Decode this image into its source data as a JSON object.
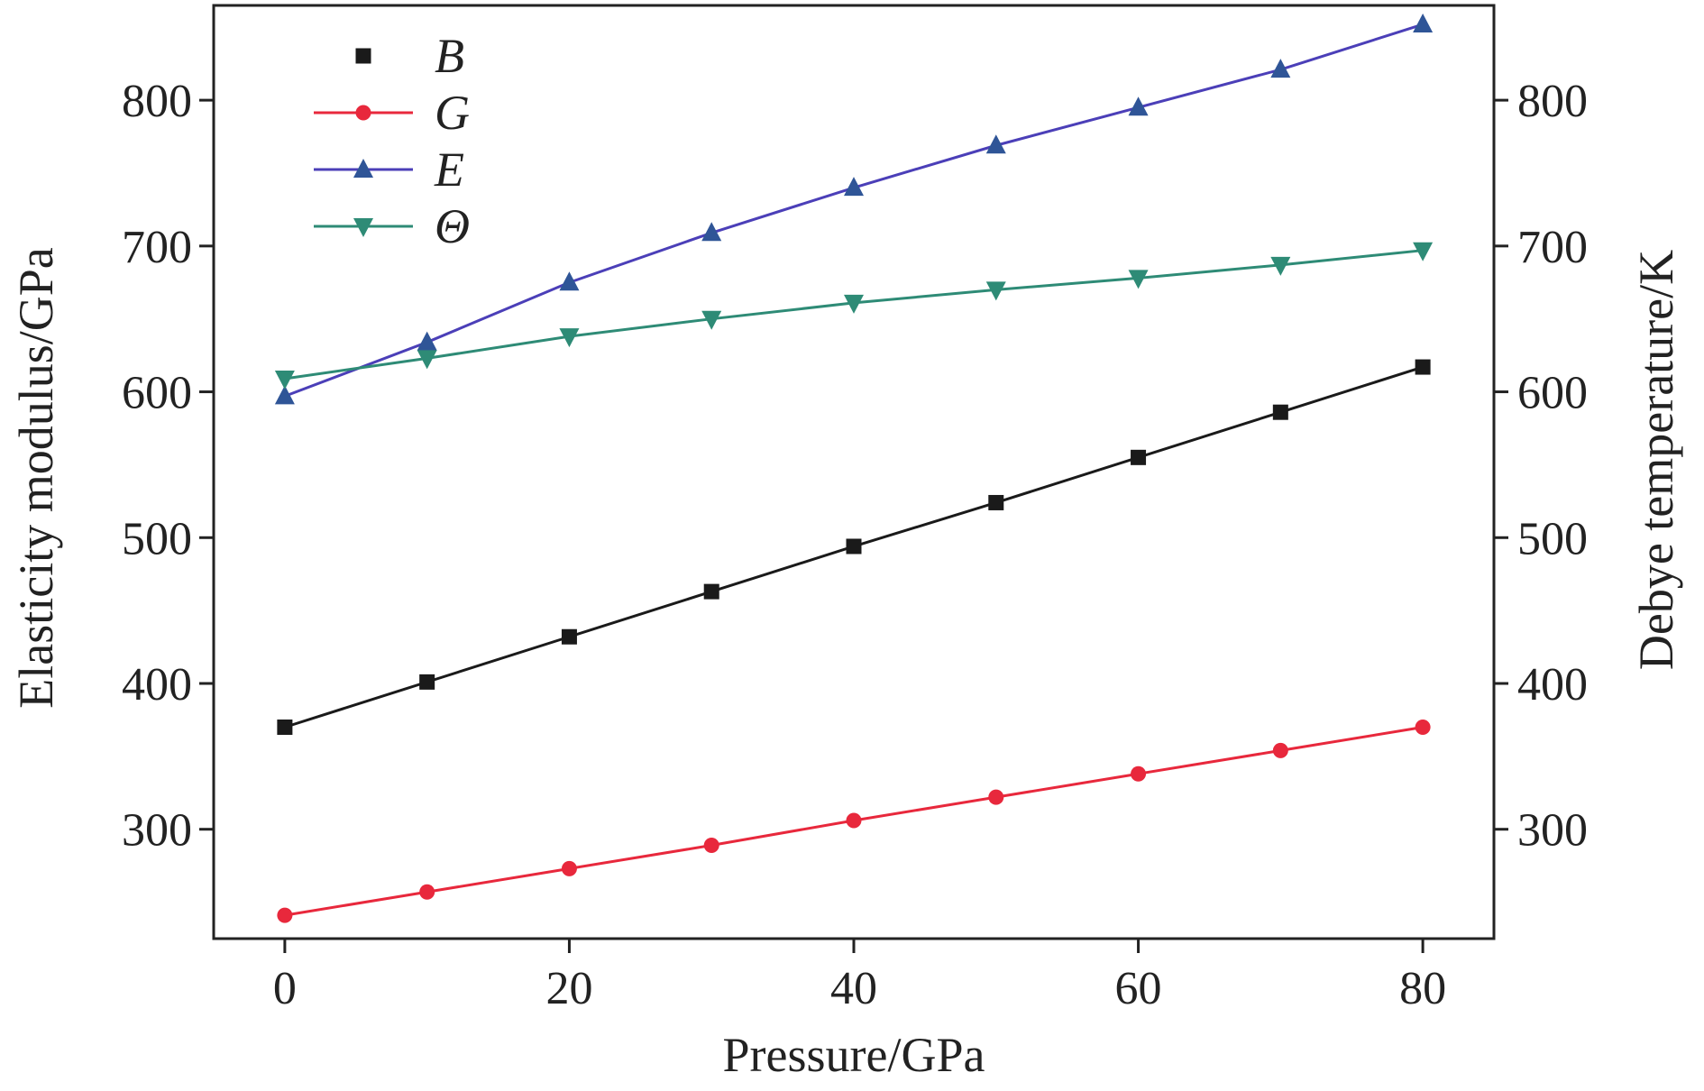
{
  "chart_data": {
    "type": "line",
    "x": [
      0,
      10,
      20,
      30,
      40,
      50,
      60,
      70,
      80
    ],
    "xlabel": "Pressure/GPa",
    "ylabel": "Elasticity modulus/GPa",
    "y2label": "Debye temperature/K",
    "xlim": [
      -5,
      85
    ],
    "ylim": [
      225,
      865
    ],
    "xticks": [
      0,
      20,
      40,
      60,
      80
    ],
    "yticks": [
      300,
      400,
      500,
      600,
      700,
      800
    ],
    "y2ticks": [
      300,
      400,
      500,
      600,
      700,
      800
    ],
    "grid": false,
    "legend_position": "top-left",
    "series": [
      {
        "name": "B",
        "axis": "left",
        "marker": "square",
        "color": "#1a1a1a",
        "line_color": "#1a1a1a",
        "values": [
          370,
          401,
          432,
          463,
          494,
          524,
          555,
          586,
          617
        ]
      },
      {
        "name": "G",
        "axis": "left",
        "marker": "circle",
        "color": "#e8283c",
        "line_color": "#e8283c",
        "values": [
          241,
          257,
          273,
          289,
          306,
          322,
          338,
          354,
          370
        ]
      },
      {
        "name": "E",
        "axis": "left",
        "marker": "triangle-up",
        "color": "#2f5597",
        "line_color": "#4b3fb8",
        "values": [
          597,
          634,
          675,
          709,
          740,
          769,
          795,
          821,
          852
        ]
      },
      {
        "name": "Θ",
        "axis": "right",
        "marker": "triangle-down",
        "color": "#2e8b76",
        "line_color": "#2e8b76",
        "values": [
          609,
          623,
          638,
          650,
          661,
          670,
          678,
          687,
          697
        ]
      }
    ]
  }
}
